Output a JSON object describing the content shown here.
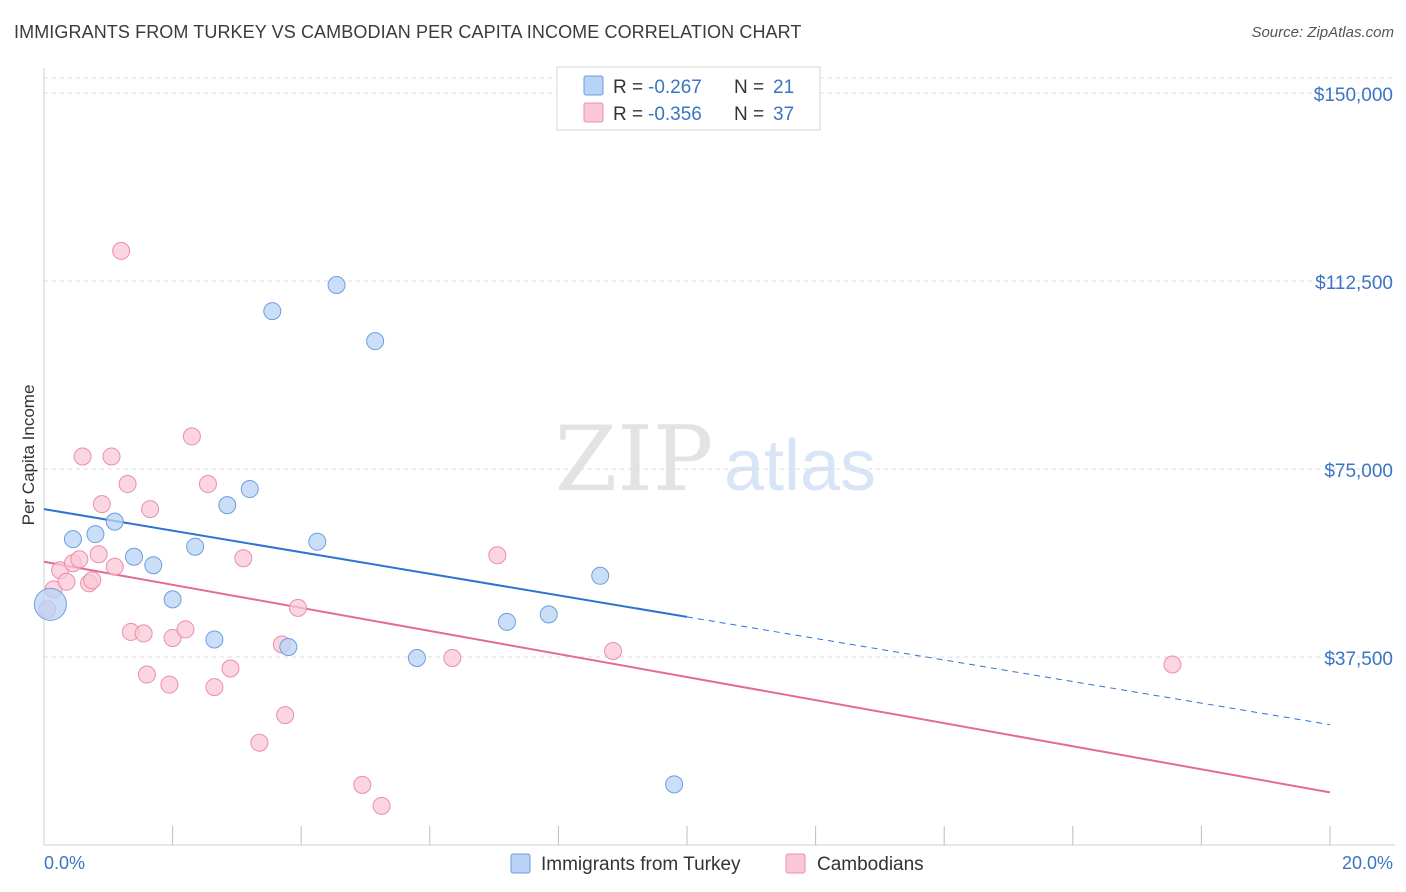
{
  "title": "IMMIGRANTS FROM TURKEY VS CAMBODIAN PER CAPITA INCOME CORRELATION CHART",
  "source": "Source: ZipAtlas.com",
  "watermark": {
    "zip": "ZIP",
    "atlas": "atlas"
  },
  "colors": {
    "turkey_fill": "#b8d3f5",
    "turkey_stroke": "#6e9edc",
    "turkey_line": "#2f73d1",
    "cambodian_fill": "#f9c7d6",
    "cambodian_stroke": "#ea8fab",
    "cambodian_line": "#e36c96",
    "grid": "#dcdcdc",
    "axis_text": "#3a74c4"
  },
  "legend_top": {
    "rows": [
      {
        "r_label": "R =",
        "r_value": "-0.267",
        "n_label": "N =",
        "n_value": "21",
        "series": "turkey"
      },
      {
        "r_label": "R =",
        "r_value": "-0.356",
        "n_label": "N =",
        "n_value": "37",
        "series": "cambodian"
      }
    ]
  },
  "legend_bottom": [
    "Immigrants from Turkey",
    "Cambodians"
  ],
  "chart_data": {
    "type": "scatter",
    "title": "IMMIGRANTS FROM TURKEY VS CAMBODIAN PER CAPITA INCOME CORRELATION CHART",
    "xlabel": "",
    "ylabel": "Per Capita Income",
    "xlim": [
      0,
      20
    ],
    "ylim": [
      0,
      150000
    ],
    "x_tick_labels": [
      "0.0%",
      "20.0%"
    ],
    "y_ticks": [
      37500,
      75000,
      112500,
      150000
    ],
    "y_tick_labels": [
      "$37,500",
      "$75,000",
      "$112,500",
      "$150,000"
    ],
    "grid": true,
    "legend_placement": "top-center",
    "series": [
      {
        "name": "Immigrants from Turkey",
        "r": -0.267,
        "n": 21,
        "trend": {
          "x0": 0,
          "y0": 67000,
          "x1": 10,
          "y1": 45500,
          "dashed_to_x": 20,
          "dashed_to_y": 24000
        },
        "points": [
          {
            "x": 0.1,
            "y": 48000,
            "big": true
          },
          {
            "x": 0.45,
            "y": 61000
          },
          {
            "x": 0.8,
            "y": 62000
          },
          {
            "x": 1.1,
            "y": 64500
          },
          {
            "x": 1.4,
            "y": 57500
          },
          {
            "x": 1.7,
            "y": 55800
          },
          {
            "x": 2.0,
            "y": 49000
          },
          {
            "x": 2.35,
            "y": 59500
          },
          {
            "x": 2.65,
            "y": 41000
          },
          {
            "x": 2.85,
            "y": 67800
          },
          {
            "x": 3.2,
            "y": 71000
          },
          {
            "x": 3.55,
            "y": 106500
          },
          {
            "x": 3.8,
            "y": 39500
          },
          {
            "x": 4.25,
            "y": 60500
          },
          {
            "x": 4.55,
            "y": 111700
          },
          {
            "x": 5.15,
            "y": 100500
          },
          {
            "x": 5.8,
            "y": 37300
          },
          {
            "x": 7.2,
            "y": 44500
          },
          {
            "x": 7.85,
            "y": 46000
          },
          {
            "x": 8.65,
            "y": 53700
          },
          {
            "x": 9.8,
            "y": 12100
          }
        ]
      },
      {
        "name": "Cambodians",
        "r": -0.356,
        "n": 37,
        "trend": {
          "x0": 0,
          "y0": 56500,
          "x1": 20,
          "y1": 10500
        },
        "points": [
          {
            "x": 0.05,
            "y": 47000
          },
          {
            "x": 0.15,
            "y": 51000
          },
          {
            "x": 0.25,
            "y": 54800
          },
          {
            "x": 0.35,
            "y": 52500
          },
          {
            "x": 0.45,
            "y": 56200
          },
          {
            "x": 0.55,
            "y": 57000
          },
          {
            "x": 0.6,
            "y": 77500
          },
          {
            "x": 0.7,
            "y": 52200
          },
          {
            "x": 0.75,
            "y": 52800
          },
          {
            "x": 0.85,
            "y": 58000
          },
          {
            "x": 0.9,
            "y": 68000
          },
          {
            "x": 1.05,
            "y": 77500
          },
          {
            "x": 1.1,
            "y": 55500
          },
          {
            "x": 1.2,
            "y": 118500
          },
          {
            "x": 1.3,
            "y": 72000
          },
          {
            "x": 1.35,
            "y": 42500
          },
          {
            "x": 1.55,
            "y": 42200
          },
          {
            "x": 1.65,
            "y": 67000
          },
          {
            "x": 1.6,
            "y": 34000
          },
          {
            "x": 1.95,
            "y": 32000
          },
          {
            "x": 2.0,
            "y": 41300
          },
          {
            "x": 2.2,
            "y": 43000
          },
          {
            "x": 2.3,
            "y": 81500
          },
          {
            "x": 2.55,
            "y": 72000
          },
          {
            "x": 2.65,
            "y": 31500
          },
          {
            "x": 2.9,
            "y": 35200
          },
          {
            "x": 3.1,
            "y": 57200
          },
          {
            "x": 3.35,
            "y": 20400
          },
          {
            "x": 3.7,
            "y": 40000
          },
          {
            "x": 3.75,
            "y": 25900
          },
          {
            "x": 3.95,
            "y": 47300
          },
          {
            "x": 4.95,
            "y": 12000
          },
          {
            "x": 5.25,
            "y": 7800
          },
          {
            "x": 6.35,
            "y": 37300
          },
          {
            "x": 7.05,
            "y": 57800
          },
          {
            "x": 8.85,
            "y": 38700
          },
          {
            "x": 17.55,
            "y": 36000
          }
        ]
      }
    ]
  }
}
